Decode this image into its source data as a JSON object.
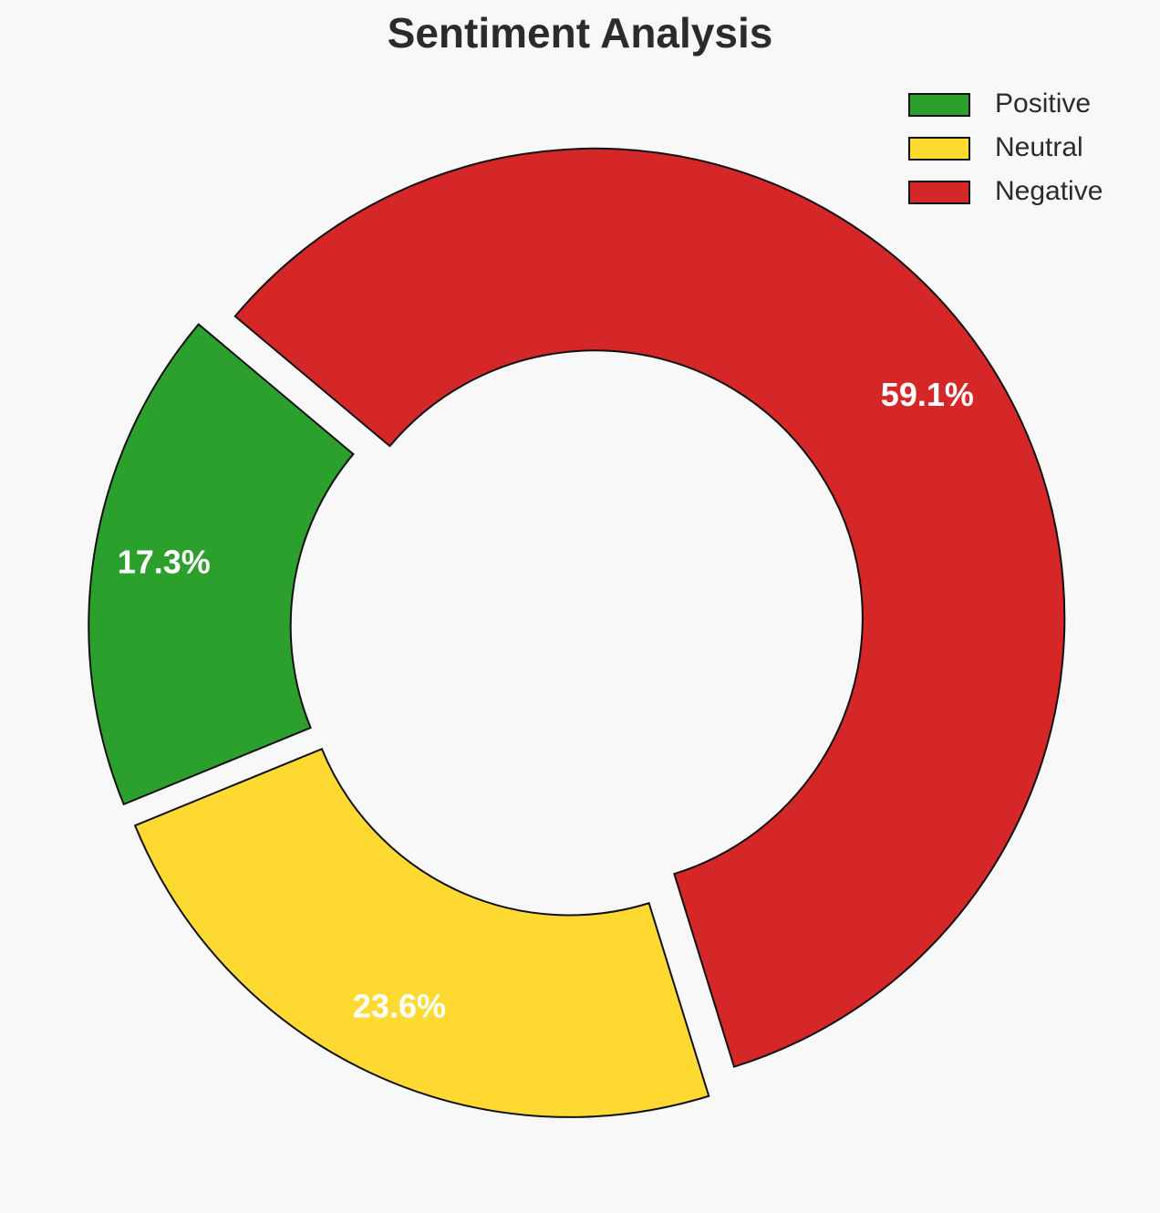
{
  "chart_data": {
    "type": "pie",
    "title": "Sentiment Analysis",
    "categories": [
      "Positive",
      "Neutral",
      "Negative"
    ],
    "values": [
      17.3,
      23.6,
      59.1
    ],
    "value_labels": [
      "17.3%",
      "23.6%",
      "59.1%"
    ],
    "colors": [
      "#2ca02c",
      "#fdd931",
      "#d62728"
    ],
    "legend": "upper right"
  }
}
